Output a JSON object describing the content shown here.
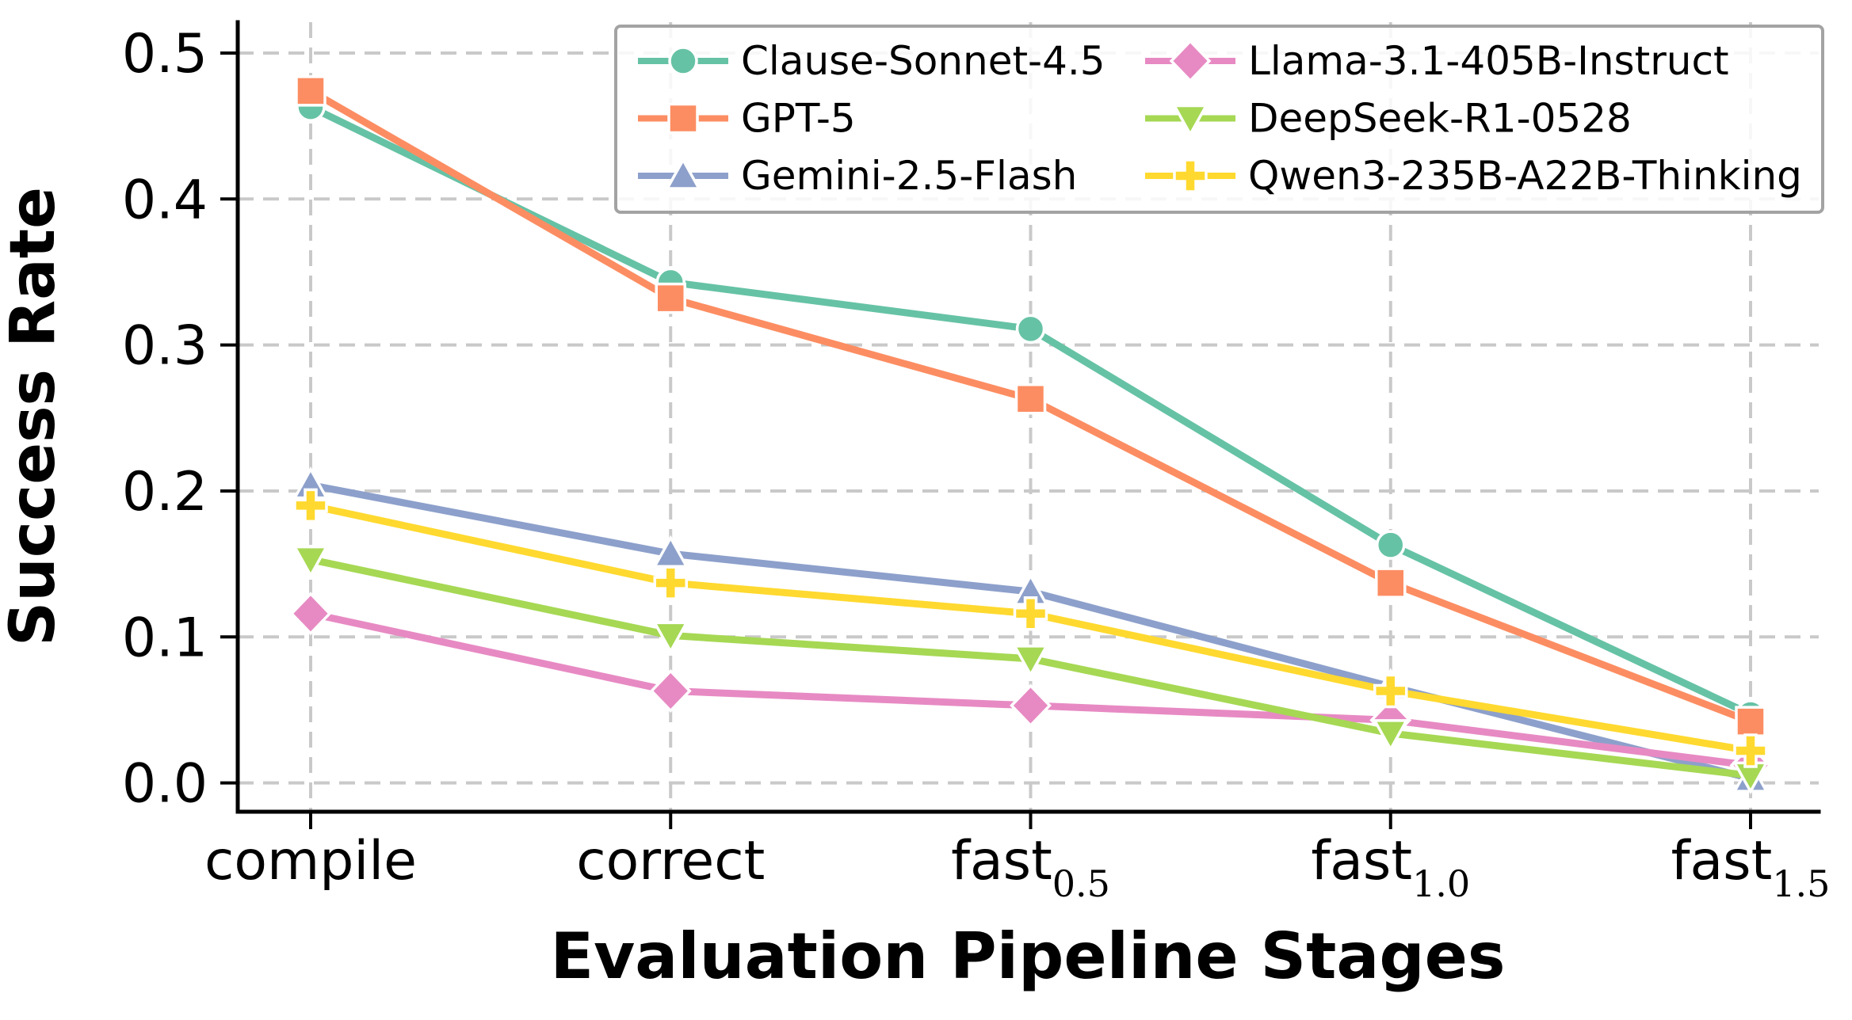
{
  "figure": {
    "background": "#ffffff",
    "text_color": "#000000",
    "grid_color": "#c9c9c9",
    "spine_color": "#000000",
    "legend_border_color": "#a3a3a3"
  },
  "chart_data": {
    "type": "line",
    "title": "",
    "xlabel": "Evaluation Pipeline Stages",
    "ylabel": "Success Rate",
    "categories": [
      {
        "base": "compile",
        "sub": ""
      },
      {
        "base": "correct",
        "sub": ""
      },
      {
        "base": "fast",
        "sub": "0.5"
      },
      {
        "base": "fast",
        "sub": "1.0"
      },
      {
        "base": "fast",
        "sub": "1.5"
      }
    ],
    "y_ticks": [
      "0.0",
      "0.1",
      "0.2",
      "0.3",
      "0.4",
      "0.5"
    ],
    "ylim": [
      -0.02,
      0.52
    ],
    "grid": true,
    "grid_style": "dashed",
    "legend": {
      "position": "upper right",
      "columns": 2,
      "frame": true
    },
    "series": [
      {
        "name": "Clause-Sonnet-4.5",
        "color": "#66c2a5",
        "marker": "circle",
        "values": [
          0.463,
          0.343,
          0.311,
          0.163,
          0.047
        ]
      },
      {
        "name": "GPT-5",
        "color": "#fc8d62",
        "marker": "square",
        "values": [
          0.474,
          0.332,
          0.263,
          0.137,
          0.042
        ]
      },
      {
        "name": "Gemini-2.5-Flash",
        "color": "#8da0cb",
        "marker": "triangle-up",
        "values": [
          0.204,
          0.157,
          0.131,
          0.066,
          0.003
        ]
      },
      {
        "name": "Llama-3.1-405B-Instruct",
        "color": "#e78ac3",
        "marker": "diamond",
        "values": [
          0.116,
          0.063,
          0.053,
          0.043,
          0.012
        ]
      },
      {
        "name": "DeepSeek-R1-0528",
        "color": "#a6d854",
        "marker": "triangle-down",
        "values": [
          0.153,
          0.101,
          0.085,
          0.034,
          0.005
        ]
      },
      {
        "name": "Qwen3-235B-A22B-Thinking",
        "color": "#ffd92f",
        "marker": "plus",
        "values": [
          0.19,
          0.137,
          0.116,
          0.063,
          0.022
        ]
      }
    ]
  }
}
